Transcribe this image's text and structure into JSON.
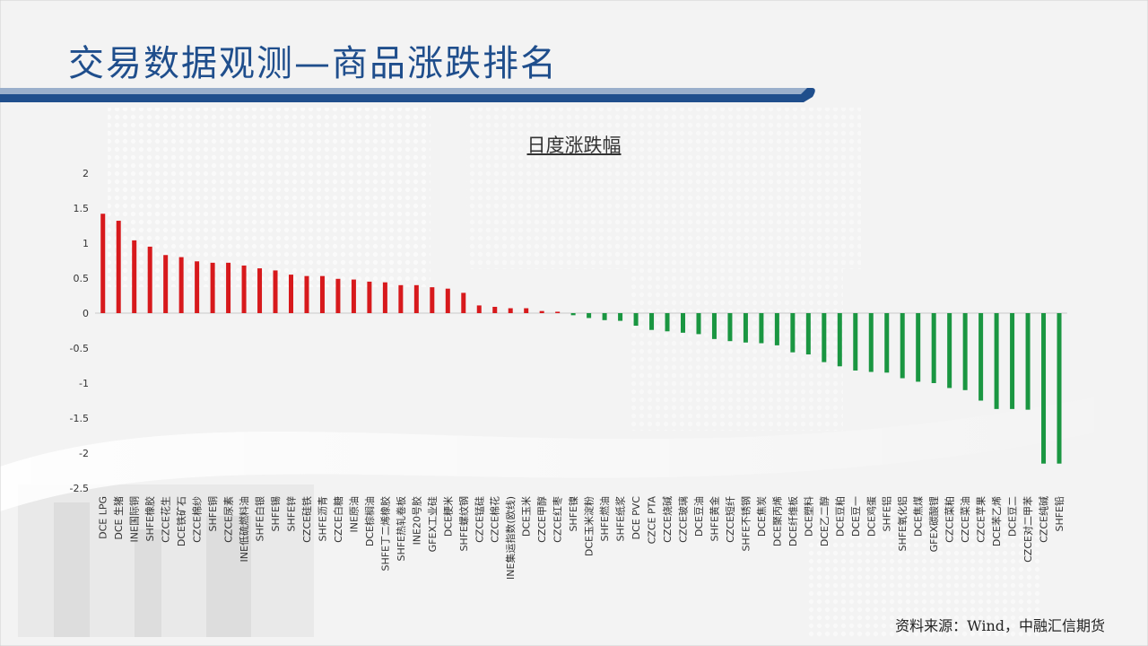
{
  "page": {
    "title": "交易数据观测—商品涨跌排名",
    "source": "资料来源：Wind，中融汇信期货"
  },
  "colors": {
    "title": "#1f4e8c",
    "up": "#d7191c",
    "down": "#1a9641"
  },
  "chart_data": {
    "type": "bar",
    "title": "日度涨跌幅",
    "ylim": [
      -2.5,
      2
    ],
    "yticks": [
      2,
      1.5,
      1,
      0.5,
      0,
      -0.5,
      -1,
      -1.5,
      -2,
      -2.5
    ],
    "grid": false,
    "categories": [
      "DCE LPG",
      "DCE 生猪",
      "INE国际铜",
      "SHFE橡胶",
      "CZCE花生",
      "DCE铁矿石",
      "CZCE棉纱",
      "SHFE铜",
      "CZCE尿素",
      "INE低硫燃料油",
      "SHFE白银",
      "SHFE锡",
      "SHFE锌",
      "CZCE硅铁",
      "SHFE沥青",
      "CZCE白糖",
      "INE原油",
      "DCE棕榈油",
      "SHFE丁二烯橡胶",
      "SHFE热轧卷板",
      "INE20号胶",
      "GFEX工业硅",
      "DCE粳米",
      "SHFE螺纹钢",
      "CZCE锰硅",
      "CZCE棉花",
      "INE集运指数(欧线)",
      "DCE玉米",
      "CZCE甲醇",
      "CZCE红枣",
      "SHFE镍",
      "DCE玉米淀粉",
      "SHFE燃油",
      "SHFE纸浆",
      "DCE PVC",
      "CZCE PTA",
      "CZCE烧碱",
      "CZCE玻璃",
      "DCE豆油",
      "SHFE黄金",
      "CZCE短纤",
      "SHFE不锈钢",
      "DCE焦炭",
      "DCE聚丙烯",
      "DCE纤维板",
      "DCE塑料",
      "DCE乙二醇",
      "DCE豆粕",
      "DCE豆一",
      "DCE鸡蛋",
      "SHFE铝",
      "SHFE氧化铝",
      "DCE焦煤",
      "GFEX碳酸锂",
      "CZCE菜粕",
      "CZCE菜油",
      "CZCE苹果",
      "DCE苯乙烯",
      "DCE豆二",
      "CZCE对二甲苯",
      "CZCE纯碱",
      "SHFE铅"
    ],
    "values": [
      1.42,
      1.32,
      1.04,
      0.95,
      0.83,
      0.8,
      0.74,
      0.72,
      0.72,
      0.68,
      0.64,
      0.61,
      0.55,
      0.53,
      0.53,
      0.49,
      0.48,
      0.45,
      0.44,
      0.4,
      0.4,
      0.37,
      0.35,
      0.29,
      0.11,
      0.09,
      0.07,
      0.07,
      0.03,
      0.02,
      -0.03,
      -0.07,
      -0.1,
      -0.11,
      -0.18,
      -0.24,
      -0.26,
      -0.28,
      -0.3,
      -0.37,
      -0.4,
      -0.42,
      -0.43,
      -0.46,
      -0.56,
      -0.59,
      -0.7,
      -0.76,
      -0.82,
      -0.84,
      -0.85,
      -0.93,
      -0.98,
      -1.0,
      -1.07,
      -1.1,
      -1.25,
      -1.37,
      -1.37,
      -1.38,
      -2.15,
      -2.15
    ]
  }
}
